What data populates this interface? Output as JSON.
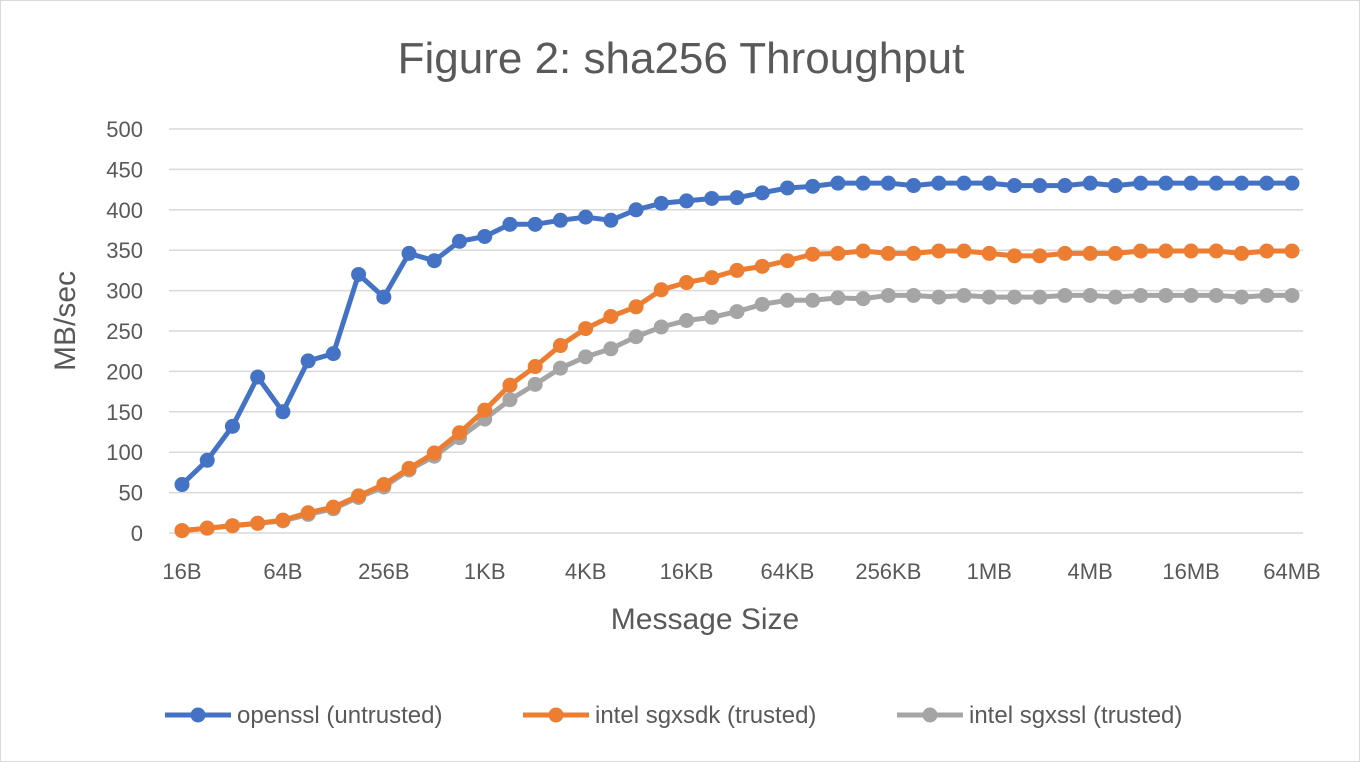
{
  "chart_data": {
    "type": "line",
    "title": "Figure 2: sha256 Throughput",
    "xlabel": "Message Size",
    "ylabel": "MB/sec",
    "ylim": [
      0,
      500
    ],
    "yticks": [
      0,
      50,
      100,
      150,
      200,
      250,
      300,
      350,
      400,
      450,
      500
    ],
    "grid": true,
    "legend_position": "bottom",
    "x_tick_labels": [
      "16B",
      "64B",
      "256B",
      "1KB",
      "4KB",
      "16KB",
      "64KB",
      "256KB",
      "1MB",
      "4MB",
      "16MB",
      "64MB"
    ],
    "x_points_per_doubling": 2,
    "series": [
      {
        "name": "openssl (untrusted)",
        "color": "#4472c4",
        "values": [
          60,
          90,
          132,
          193,
          150,
          213,
          222,
          320,
          292,
          346,
          337,
          361,
          367,
          382,
          382,
          387,
          391,
          387,
          400,
          408,
          411,
          414,
          415,
          421,
          427,
          429,
          433,
          433,
          433,
          430,
          433,
          433,
          433,
          430,
          430,
          430,
          433,
          430,
          433,
          433,
          433,
          433,
          433,
          433,
          433
        ]
      },
      {
        "name": "intel sgxsdk (trusted)",
        "color": "#ed7d31",
        "values": [
          3,
          6,
          9,
          12,
          16,
          25,
          32,
          46,
          60,
          80,
          99,
          124,
          152,
          183,
          206,
          232,
          253,
          268,
          280,
          301,
          310,
          316,
          325,
          330,
          337,
          345,
          346,
          349,
          346,
          346,
          349,
          349,
          346,
          343,
          343,
          346,
          346,
          346,
          349,
          349,
          349,
          349,
          346,
          349,
          349
        ]
      },
      {
        "name": "intel sgxssl (trusted)",
        "color": "#a5a5a5",
        "values": [
          3,
          6,
          9,
          12,
          15,
          23,
          30,
          44,
          57,
          78,
          95,
          118,
          141,
          165,
          184,
          204,
          218,
          228,
          243,
          255,
          263,
          267,
          274,
          283,
          288,
          288,
          291,
          290,
          294,
          294,
          292,
          294,
          292,
          292,
          292,
          294,
          294,
          292,
          294,
          294,
          294,
          294,
          292,
          294,
          294
        ]
      }
    ]
  }
}
